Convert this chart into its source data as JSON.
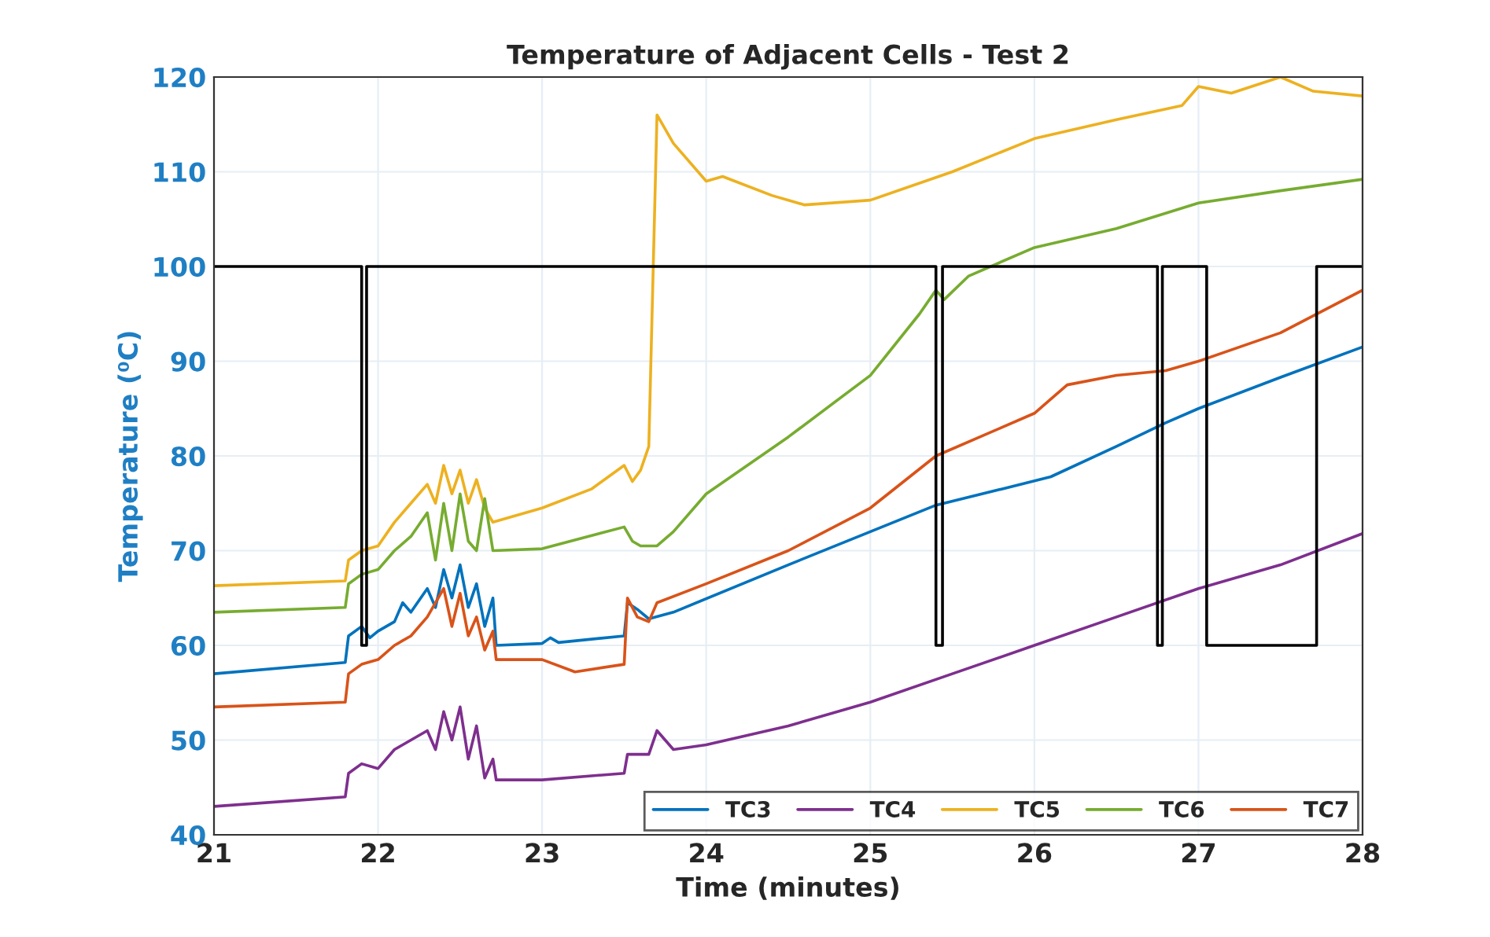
{
  "chart_data": {
    "type": "line",
    "title": "Temperature of Adjacent Cells - Test 2",
    "xlabel": "Time (minutes)",
    "ylabel": "Temperature (⁰C)",
    "xlim": [
      21,
      28
    ],
    "xticks": [
      21,
      22,
      23,
      24,
      25,
      26,
      27,
      28
    ],
    "ylim": [
      40,
      120
    ],
    "yticks": [
      40,
      50,
      60,
      70,
      80,
      90,
      100,
      110,
      120
    ],
    "grid": true,
    "legend": "bottom right",
    "series": [
      {
        "name": "TC3",
        "color": "#0072bd",
        "x": [
          21,
          21.8,
          21.82,
          21.9,
          21.95,
          22.0,
          22.1,
          22.15,
          22.2,
          22.3,
          22.35,
          22.4,
          22.45,
          22.5,
          22.55,
          22.6,
          22.65,
          22.7,
          22.72,
          23,
          23.05,
          23.1,
          23.5,
          23.52,
          23.58,
          23.65,
          23.8,
          24.5,
          25,
          25.4,
          25.8,
          26.1,
          26.5,
          26.8,
          27,
          27.5,
          28
        ],
        "values": [
          57,
          58.2,
          61,
          62,
          60.8,
          61.5,
          62.5,
          64.5,
          63.5,
          66,
          64,
          68,
          65,
          68.5,
          64,
          66.5,
          62,
          65,
          60,
          60.2,
          60.8,
          60.3,
          61,
          64.5,
          63.8,
          62.8,
          63.5,
          68.5,
          72,
          74.8,
          76.5,
          77.8,
          81,
          83.5,
          85,
          88.3,
          91.5
        ]
      },
      {
        "name": "TC4",
        "color": "#7e2f8e",
        "x": [
          21,
          21.8,
          21.82,
          21.9,
          22,
          22.1,
          22.2,
          22.3,
          22.35,
          22.4,
          22.45,
          22.5,
          22.55,
          22.6,
          22.65,
          22.7,
          22.72,
          23,
          23.5,
          23.52,
          23.65,
          23.7,
          23.8,
          24,
          24.5,
          25,
          25.5,
          26,
          26.5,
          27,
          27.5,
          28
        ],
        "values": [
          43,
          44,
          46.5,
          47.5,
          47,
          49,
          50,
          51,
          49,
          53,
          50,
          53.5,
          48,
          51.5,
          46,
          48,
          45.8,
          45.8,
          46.5,
          48.5,
          48.5,
          51,
          49,
          49.5,
          51.5,
          54,
          57,
          60,
          63,
          66,
          68.5,
          71.8
        ]
      },
      {
        "name": "TC5",
        "color": "#edb120",
        "x": [
          21,
          21.8,
          21.82,
          21.9,
          22,
          22.1,
          22.2,
          22.3,
          22.35,
          22.4,
          22.45,
          22.5,
          22.55,
          22.6,
          22.65,
          22.7,
          23,
          23.3,
          23.5,
          23.55,
          23.6,
          23.65,
          23.7,
          23.8,
          24,
          24.1,
          24.4,
          24.6,
          25,
          25.5,
          26,
          26.5,
          26.9,
          27,
          27.2,
          27.5,
          27.7,
          28
        ],
        "values": [
          66.3,
          66.8,
          69,
          70,
          70.5,
          73,
          75,
          77,
          75,
          79,
          76,
          78.5,
          75,
          77.5,
          74.5,
          73,
          74.5,
          76.5,
          79,
          77.3,
          78.5,
          81,
          116,
          113,
          109,
          109.5,
          107.5,
          106.5,
          107,
          110,
          113.5,
          115.5,
          117,
          119,
          118.3,
          120,
          118.5,
          118
        ]
      },
      {
        "name": "TC6",
        "color": "#77ac30",
        "x": [
          21,
          21.8,
          21.82,
          21.9,
          22,
          22.1,
          22.2,
          22.3,
          22.35,
          22.4,
          22.45,
          22.5,
          22.55,
          22.6,
          22.65,
          22.7,
          23,
          23.5,
          23.55,
          23.6,
          23.7,
          23.8,
          24,
          24.5,
          25,
          25.3,
          25.4,
          25.45,
          25.6,
          26,
          26.5,
          27,
          27.5,
          28
        ],
        "values": [
          63.5,
          64,
          66.5,
          67.5,
          68,
          70,
          71.5,
          74,
          69,
          75,
          70,
          76,
          71,
          70,
          75.5,
          70,
          70.2,
          72.5,
          71,
          70.5,
          70.5,
          72,
          76,
          82,
          88.5,
          95,
          97.5,
          96.5,
          99,
          102,
          104,
          106.7,
          108,
          109.2
        ]
      },
      {
        "name": "TC7",
        "color": "#d95319",
        "x": [
          21,
          21.8,
          21.82,
          21.9,
          22.0,
          22.1,
          22.2,
          22.3,
          22.4,
          22.45,
          22.5,
          22.55,
          22.6,
          22.65,
          22.7,
          22.72,
          23,
          23.2,
          23.5,
          23.52,
          23.58,
          23.65,
          23.7,
          24,
          24.5,
          25,
          25.4,
          25.8,
          26,
          26.2,
          26.5,
          26.8,
          27,
          27.5,
          28
        ],
        "values": [
          53.5,
          54,
          57,
          58,
          58.5,
          60,
          61,
          63,
          66,
          62,
          65.5,
          61,
          63,
          59.5,
          61.5,
          58.5,
          58.5,
          57.2,
          58,
          65,
          63,
          62.5,
          64.5,
          66.5,
          70,
          74.5,
          80,
          83,
          84.5,
          87.5,
          88.5,
          89,
          90,
          93,
          97.5
        ]
      },
      {
        "color": "#000000",
        "x": [
          21,
          21.9,
          21.9,
          21.93,
          21.93,
          25.4,
          25.4,
          25.44,
          25.44,
          26.75,
          26.75,
          26.78,
          26.78,
          27.05,
          27.05,
          27.72,
          27.72,
          28
        ],
        "values": [
          100,
          100,
          60,
          60,
          100,
          100,
          60,
          60,
          100,
          100,
          60,
          60,
          100,
          100,
          60,
          60,
          100,
          100
        ]
      }
    ]
  }
}
